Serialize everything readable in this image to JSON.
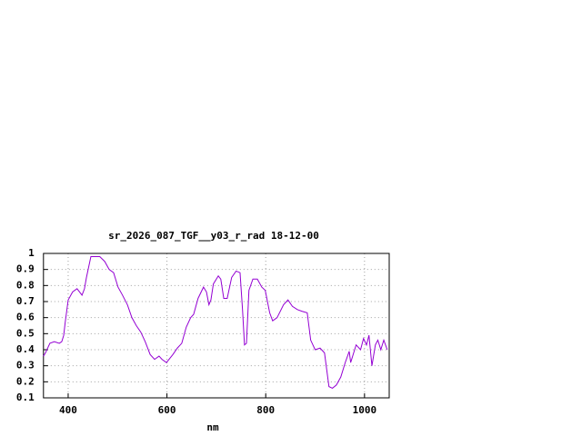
{
  "chart_data": {
    "type": "line",
    "title": "sr_2026_087_TGF__y03_r_rad 18-12-00",
    "x_label": "nm",
    "x": [
      350,
      354,
      363,
      372,
      382,
      387,
      391,
      394,
      400,
      409,
      418,
      428,
      433,
      437,
      446,
      464,
      474,
      483,
      492,
      501,
      510,
      520,
      529,
      538,
      547,
      556,
      566,
      575,
      584,
      590,
      599,
      612,
      621,
      630,
      639,
      648,
      654,
      663,
      674,
      680,
      685,
      689,
      694,
      704,
      709,
      715,
      722,
      731,
      740,
      748,
      753,
      757,
      761,
      766,
      774,
      783,
      792,
      799,
      808,
      814,
      823,
      836,
      845,
      854,
      864,
      873,
      884,
      891,
      900,
      910,
      919,
      928,
      935,
      943,
      952,
      961,
      969,
      972,
      983,
      992,
      998,
      1004,
      1009,
      1015,
      1022,
      1027,
      1033,
      1039,
      1046
    ],
    "values": [
      0.36,
      0.38,
      0.44,
      0.45,
      0.44,
      0.45,
      0.49,
      0.57,
      0.71,
      0.76,
      0.78,
      0.74,
      0.78,
      0.85,
      0.98,
      0.98,
      0.95,
      0.9,
      0.88,
      0.79,
      0.74,
      0.68,
      0.6,
      0.55,
      0.51,
      0.45,
      0.37,
      0.34,
      0.36,
      0.34,
      0.32,
      0.37,
      0.41,
      0.44,
      0.54,
      0.6,
      0.62,
      0.72,
      0.79,
      0.76,
      0.68,
      0.71,
      0.81,
      0.86,
      0.84,
      0.72,
      0.72,
      0.85,
      0.89,
      0.88,
      0.65,
      0.43,
      0.44,
      0.77,
      0.84,
      0.84,
      0.79,
      0.77,
      0.63,
      0.58,
      0.6,
      0.68,
      0.71,
      0.67,
      0.65,
      0.64,
      0.63,
      0.46,
      0.4,
      0.41,
      0.38,
      0.17,
      0.16,
      0.18,
      0.23,
      0.32,
      0.39,
      0.32,
      0.43,
      0.4,
      0.47,
      0.43,
      0.49,
      0.3,
      0.43,
      0.46,
      0.4,
      0.46,
      0.4
    ],
    "color": "#9400d3",
    "xlim": [
      350,
      1050
    ],
    "xticks": [
      400,
      600,
      800,
      1000
    ],
    "ylim": [
      0.1,
      1
    ],
    "yticks": [
      0.1,
      0.2,
      0.3,
      0.4,
      0.5,
      0.6,
      0.7,
      0.8,
      0.9,
      1
    ],
    "grid": true
  }
}
